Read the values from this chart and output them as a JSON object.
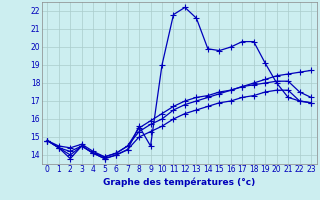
{
  "title": "Graphe des températures (°c)",
  "bg_color": "#cceef0",
  "grid_color": "#aacccc",
  "line_color": "#0000bb",
  "xlim": [
    -0.5,
    23.5
  ],
  "ylim": [
    13.5,
    22.5
  ],
  "xticks": [
    0,
    1,
    2,
    3,
    4,
    5,
    6,
    7,
    8,
    9,
    10,
    11,
    12,
    13,
    14,
    15,
    16,
    17,
    18,
    19,
    20,
    21,
    22,
    23
  ],
  "yticks": [
    14,
    15,
    16,
    17,
    18,
    19,
    20,
    21,
    22
  ],
  "line1_x": [
    0,
    1,
    2,
    3,
    4,
    5,
    6,
    7,
    8,
    9,
    10,
    11,
    12,
    13,
    14,
    15,
    16,
    17,
    18,
    19,
    20,
    21,
    22,
    23
  ],
  "line1_y": [
    14.8,
    14.4,
    13.8,
    14.5,
    14.1,
    13.8,
    14.0,
    14.3,
    15.6,
    14.5,
    19.0,
    21.8,
    22.2,
    21.6,
    19.9,
    19.8,
    20.0,
    20.3,
    20.3,
    19.1,
    18.0,
    17.2,
    17.0,
    16.9
  ],
  "line2_x": [
    0,
    1,
    2,
    3,
    4,
    5,
    6,
    7,
    8,
    9,
    10,
    11,
    12,
    13,
    14,
    15,
    16,
    17,
    18,
    19,
    20,
    21,
    22,
    23
  ],
  "line2_y": [
    14.8,
    14.5,
    14.4,
    14.6,
    14.2,
    13.9,
    14.1,
    14.5,
    15.3,
    15.7,
    16.0,
    16.5,
    16.8,
    17.0,
    17.2,
    17.4,
    17.6,
    17.8,
    18.0,
    18.2,
    18.4,
    18.5,
    18.6,
    18.7
  ],
  "line3_x": [
    0,
    1,
    2,
    3,
    4,
    5,
    6,
    7,
    8,
    9,
    10,
    11,
    12,
    13,
    14,
    15,
    16,
    17,
    18,
    19,
    20,
    21,
    22,
    23
  ],
  "line3_y": [
    14.8,
    14.4,
    14.2,
    14.5,
    14.1,
    13.8,
    14.0,
    14.3,
    15.0,
    15.3,
    15.6,
    16.0,
    16.3,
    16.5,
    16.7,
    16.9,
    17.0,
    17.2,
    17.3,
    17.5,
    17.6,
    17.6,
    17.0,
    16.9
  ],
  "line4_x": [
    0,
    1,
    2,
    3,
    4,
    5,
    6,
    7,
    8,
    9,
    10,
    11,
    12,
    13,
    14,
    15,
    16,
    17,
    18,
    19,
    20,
    21,
    22,
    23
  ],
  "line4_y": [
    14.8,
    14.4,
    14.0,
    14.5,
    14.1,
    13.9,
    14.1,
    14.5,
    15.5,
    15.9,
    16.3,
    16.7,
    17.0,
    17.2,
    17.3,
    17.5,
    17.6,
    17.8,
    17.9,
    18.0,
    18.1,
    18.1,
    17.5,
    17.2
  ]
}
